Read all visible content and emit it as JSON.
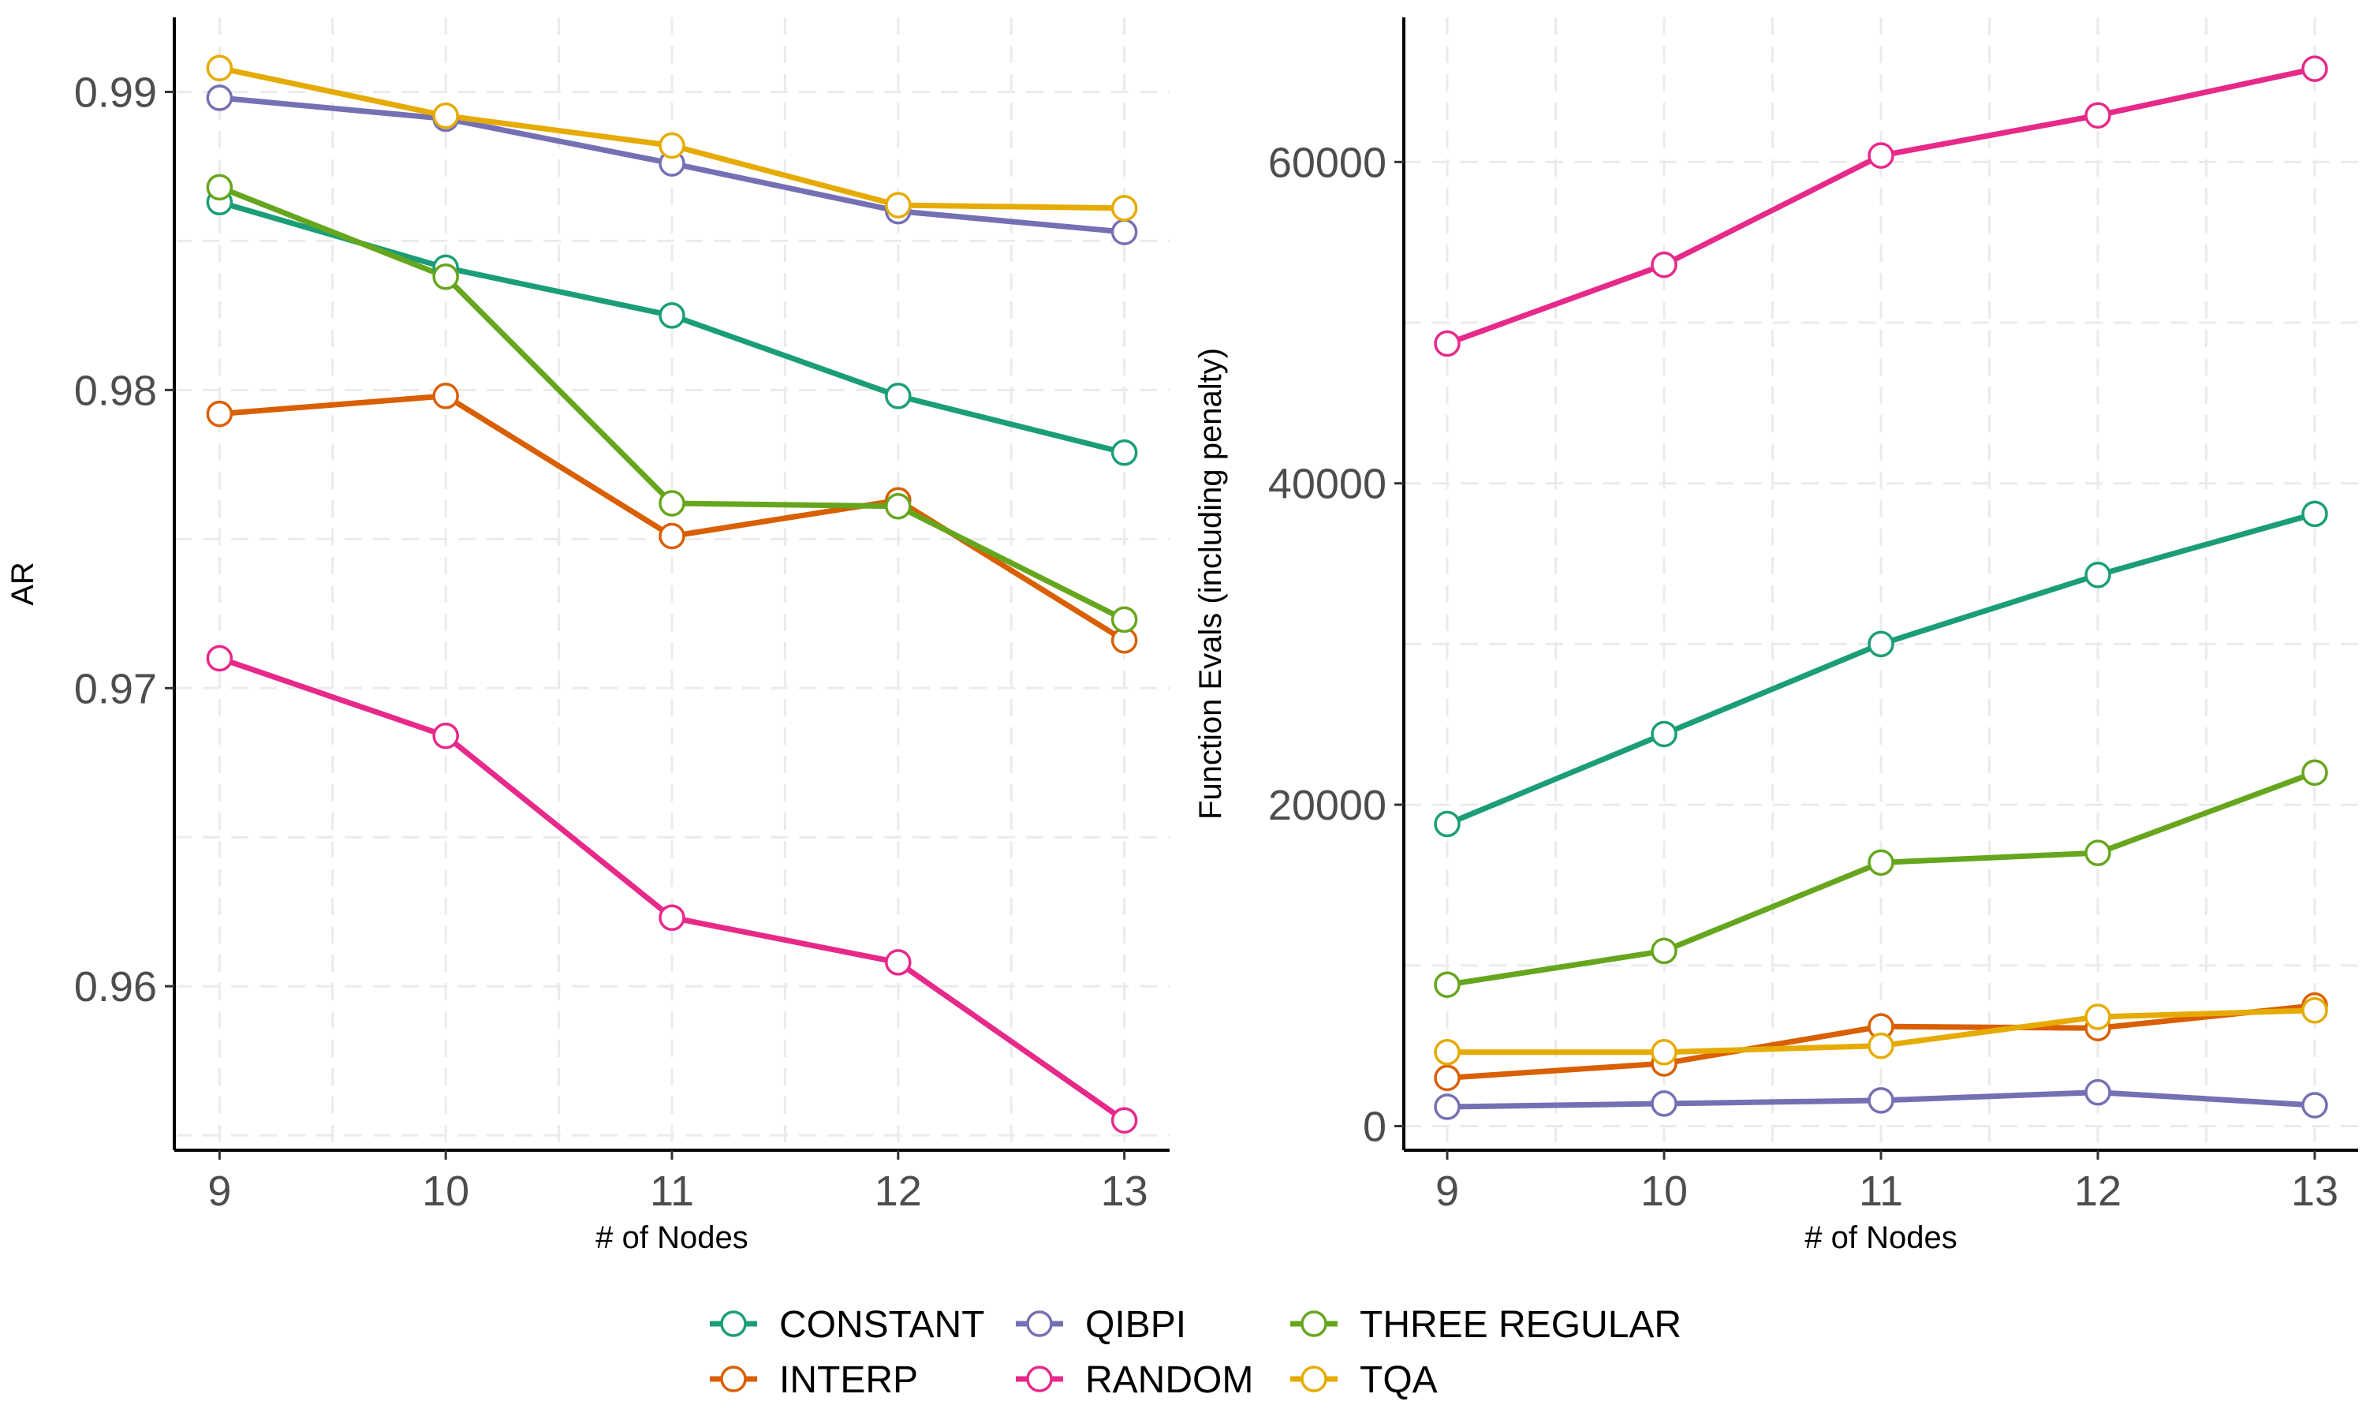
{
  "chart_data": [
    {
      "type": "line",
      "title": "",
      "xlabel": "# of Nodes",
      "ylabel": "AR",
      "x": [
        9,
        10,
        11,
        12,
        13
      ],
      "xlim": [
        8.8,
        13.2
      ],
      "ylim": [
        0.9545,
        0.9925
      ],
      "yticks": [
        0.96,
        0.97,
        0.98,
        0.99
      ],
      "ytick_labels": [
        "0.96",
        "0.97",
        "0.98",
        "0.99"
      ],
      "grid": true,
      "series": [
        {
          "name": "CONSTANT",
          "values": [
            0.9863,
            0.9841,
            0.9825,
            0.9798,
            0.9779
          ]
        },
        {
          "name": "INTERP",
          "values": [
            0.9792,
            0.9798,
            0.9751,
            0.9763,
            0.9716
          ]
        },
        {
          "name": "QIBPI",
          "values": [
            0.9898,
            0.9891,
            0.9876,
            0.986,
            0.9853
          ]
        },
        {
          "name": "RANDOM",
          "values": [
            0.971,
            0.9684,
            0.9623,
            0.9608,
            0.9555
          ]
        },
        {
          "name": "THREE REGULAR",
          "values": [
            0.9868,
            0.9838,
            0.9762,
            0.9761,
            0.9723
          ]
        },
        {
          "name": "TQA",
          "values": [
            0.9908,
            0.9892,
            0.9882,
            0.9862,
            0.9861
          ]
        }
      ]
    },
    {
      "type": "line",
      "title": "",
      "xlabel": "# of Nodes",
      "ylabel": "Function Evals (including penalty)",
      "x": [
        9,
        10,
        11,
        12,
        13
      ],
      "xlim": [
        8.8,
        13.2
      ],
      "ylim": [
        -1500,
        69000
      ],
      "yticks": [
        0,
        20000,
        40000,
        60000
      ],
      "ytick_labels": [
        "0",
        "20000",
        "40000",
        "60000"
      ],
      "grid": true,
      "series": [
        {
          "name": "CONSTANT",
          "values": [
            18800,
            24400,
            30000,
            34300,
            38100
          ]
        },
        {
          "name": "INTERP",
          "values": [
            3000,
            3900,
            6200,
            6100,
            7500
          ]
        },
        {
          "name": "QIBPI",
          "values": [
            1200,
            1400,
            1600,
            2100,
            1300
          ]
        },
        {
          "name": "RANDOM",
          "values": [
            48700,
            53600,
            60400,
            62900,
            65800
          ]
        },
        {
          "name": "THREE REGULAR",
          "values": [
            8800,
            10900,
            16400,
            17000,
            22000
          ]
        },
        {
          "name": "TQA",
          "values": [
            4600,
            4600,
            5000,
            6800,
            7200
          ]
        }
      ]
    }
  ],
  "legend": {
    "placement": "bottom",
    "items": [
      {
        "label": "CONSTANT",
        "color": "#1b9e77"
      },
      {
        "label": "QIBPI",
        "color": "#7570b3"
      },
      {
        "label": "THREE REGULAR",
        "color": "#66a61e"
      },
      {
        "label": "INTERP",
        "color": "#d95f02"
      },
      {
        "label": "RANDOM",
        "color": "#e7298a"
      },
      {
        "label": "TQA",
        "color": "#e6ab02"
      }
    ]
  },
  "colors": {
    "CONSTANT": "#1b9e77",
    "INTERP": "#d95f02",
    "QIBPI": "#7570b3",
    "RANDOM": "#e7298a",
    "THREE REGULAR": "#66a61e",
    "TQA": "#e6ab02"
  }
}
